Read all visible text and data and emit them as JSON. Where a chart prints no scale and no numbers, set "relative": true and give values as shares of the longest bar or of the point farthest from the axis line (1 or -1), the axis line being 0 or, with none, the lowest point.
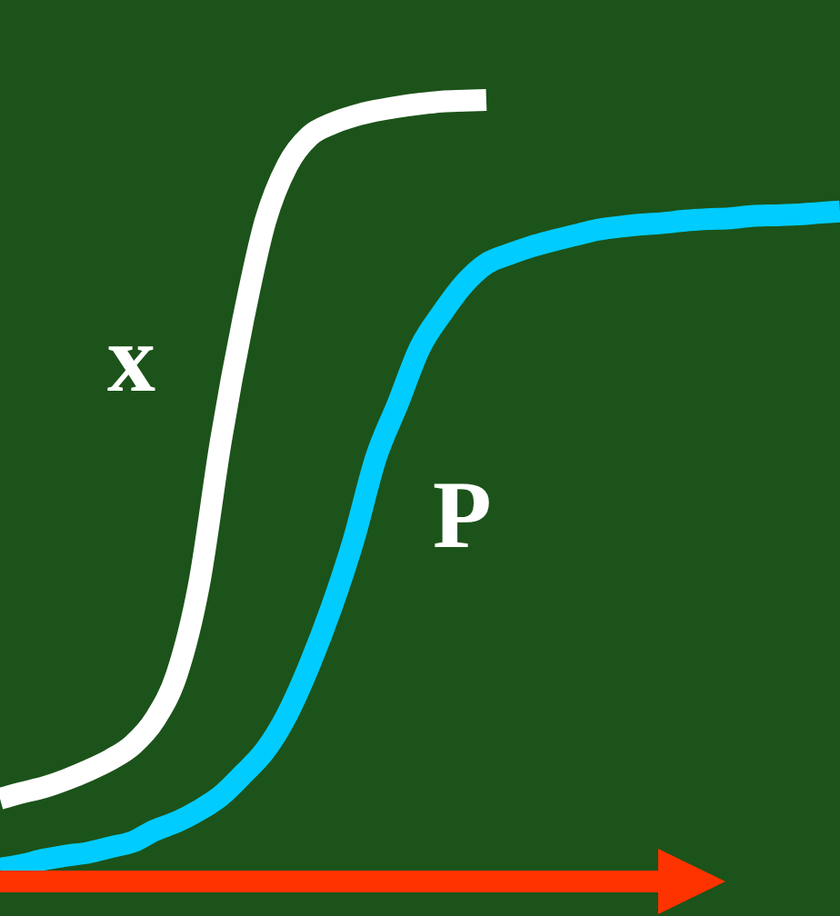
{
  "chart_data": {
    "type": "line",
    "relative": true,
    "marker": "none",
    "categories": [
      null,
      null,
      null,
      null,
      null,
      null,
      null,
      null,
      null,
      null,
      null,
      null,
      null,
      null,
      null,
      null,
      null,
      null,
      null,
      null,
      null,
      null,
      null,
      null,
      null,
      null,
      null,
      null,
      null,
      null,
      null,
      null,
      null,
      null,
      null,
      null,
      null,
      null,
      null
    ],
    "series": [
      {
        "name": "x",
        "color": "#ffffff",
        "values": [
          0.091,
          0.099,
          0.106,
          0.116,
          0.128,
          0.142,
          0.161,
          0.194,
          0.253,
          0.369,
          0.558,
          0.714,
          0.842,
          0.915,
          0.953,
          0.969,
          0.979,
          0.986,
          0.991,
          0.995,
          0.998,
          0.999,
          1,
          null,
          null,
          null,
          null,
          null,
          null,
          null,
          null,
          null,
          null,
          null,
          null,
          null,
          null,
          null,
          null
        ]
      },
      {
        "name": "P",
        "color": "#00ccff",
        "values": [
          0,
          0.005,
          0.012,
          0.017,
          0.021,
          0.028,
          0.035,
          0.05,
          0.061,
          0.076,
          0.095,
          0.123,
          0.154,
          0.201,
          0.265,
          0.34,
          0.428,
          0.534,
          0.605,
          0.678,
          0.723,
          0.761,
          0.787,
          0.799,
          0.809,
          0.817,
          0.824,
          0.831,
          0.835,
          0.838,
          0.84,
          0.843,
          0.845,
          0.846,
          0.849,
          0.85,
          0.851,
          0.853,
          0.855
        ]
      }
    ]
  }
}
